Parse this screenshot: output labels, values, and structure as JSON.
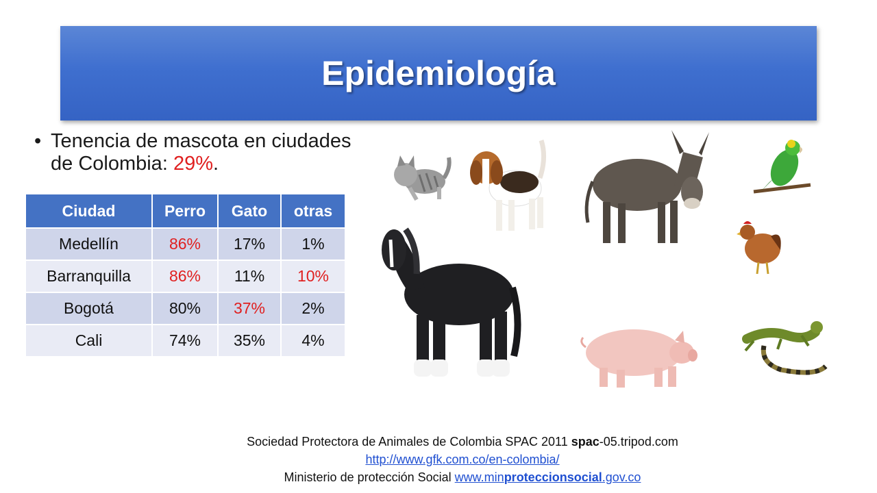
{
  "slide": {
    "title": "Epidemiología",
    "bullet": {
      "text": "Tenencia de mascota en ciudades de Colombia: ",
      "highlight": "29%",
      "suffix": "."
    },
    "table": {
      "headers": [
        "Ciudad",
        "Perro",
        "Gato",
        "otras"
      ],
      "rows": [
        {
          "city": "Medellín",
          "perro": "86%",
          "gato": "17%",
          "otras": "1%"
        },
        {
          "city": "Barranquilla",
          "perro": "86%",
          "gato": "11%",
          "otras": "10%"
        },
        {
          "city": "Bogotá",
          "perro": "80%",
          "gato": "37%",
          "otras": "2%"
        },
        {
          "city": "Cali",
          "perro": "74%",
          "gato": "35%",
          "otras": "4%"
        }
      ]
    },
    "footer": {
      "line1_text": "Sociedad Protectora de Animales de Colombia  SPAC 2011 ",
      "line1_bold": "spac",
      "line1_rest": "-05.tripod.com",
      "link1": "http://www.gfk.com.co/en-colombia/",
      "line3_text": "Ministerio de protección Social ",
      "link2_a": "www.min",
      "link2_b": "proteccionsocial",
      "link2_c": ".gov.co"
    },
    "colors": {
      "title_bar": "#4472c4",
      "header_fill": "#4472c4",
      "highlight": "#e02020"
    },
    "animals": [
      "cat-image",
      "beagle-image",
      "donkey-image",
      "parrot-image",
      "horse-image",
      "hen-image",
      "pig-image",
      "iguana-image"
    ]
  }
}
